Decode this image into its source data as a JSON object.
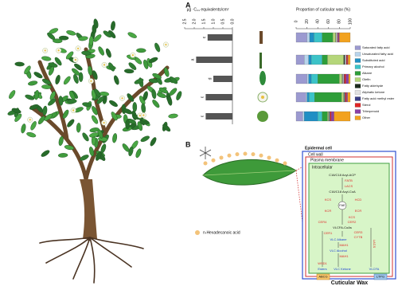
{
  "panel_a": {
    "label": "A",
    "bar_chart": {
      "type": "bar",
      "orientation": "horizontal",
      "x_label": "µg ·C₂₄ equivalents/cm²",
      "xlim": [
        0,
        2.5
      ],
      "xticks": [
        {
          "value": 0,
          "label": "0.0"
        },
        0.5,
        {
          "value": 1,
          "label": "1.0"
        },
        1.5,
        {
          "value": 2,
          "label": "2.0"
        },
        2.5
      ],
      "values": [
        1.3,
        1.9,
        1.0,
        1.4,
        1.4
      ],
      "letters": [
        "c",
        "a",
        "d",
        "c",
        "c"
      ],
      "color": "#555555"
    },
    "stacked_chart": {
      "type": "stacked-bar",
      "x_label": "Proportion of cuticular wax (%)",
      "xlim": [
        0,
        100
      ],
      "xticks": [
        0,
        20,
        40,
        60,
        80,
        100
      ],
      "series": [
        {
          "name": "Saturated fatty acid",
          "color": "#9c9ad0",
          "values": [
            20,
            15,
            20,
            18,
            12
          ]
        },
        {
          "name": "Unsaturated fatty acid",
          "color": "#b8d4ec",
          "values": [
            5,
            8,
            3,
            2,
            3
          ]
        },
        {
          "name": "Substituted acid",
          "color": "#1f8fc4",
          "values": [
            8,
            5,
            5,
            4,
            25
          ]
        },
        {
          "name": "Primary alcohol",
          "color": "#3cc3c8",
          "values": [
            15,
            20,
            12,
            10,
            8
          ]
        },
        {
          "name": "Alkane",
          "color": "#2e9e3a",
          "values": [
            20,
            10,
            40,
            50,
            10
          ]
        },
        {
          "name": "Olefin",
          "color": "#b5d67a",
          "values": [
            5,
            30,
            5,
            4,
            2
          ]
        },
        {
          "name": "Fatty aldehyde",
          "color": "#1d2b1d",
          "values": [
            1,
            2,
            1,
            1,
            1
          ]
        },
        {
          "name": "Aliphatic ketone",
          "color": "#e2e2e2",
          "values": [
            2,
            2,
            2,
            1,
            1
          ]
        },
        {
          "name": "Fatty acid methyl ester",
          "color": "#3b3f86",
          "values": [
            1,
            1,
            1,
            1,
            1
          ]
        },
        {
          "name": "Sterol",
          "color": "#e02424",
          "values": [
            1,
            2,
            3,
            2,
            2
          ]
        },
        {
          "name": "Triterpenoid",
          "color": "#8a3fa6",
          "values": [
            2,
            1,
            5,
            2,
            5
          ]
        },
        {
          "name": "Other",
          "color": "#f2a21e",
          "values": [
            20,
            4,
            3,
            5,
            30
          ]
        }
      ]
    }
  },
  "panel_b": {
    "label": "B",
    "compound": "n-Hexadecanoic acid",
    "compartments": [
      "Epidermal cell",
      "Cell wall",
      "Plasma membrane",
      "Intracellular"
    ],
    "nodes": [
      {
        "label": "C16/C18 Acyl-ACP",
        "kind": "metabolite"
      },
      {
        "label": "FATB",
        "kind": "enzyme"
      },
      {
        "label": "LACS",
        "kind": "enzyme"
      },
      {
        "label": "C16/C18 Acyl-CoA",
        "kind": "metabolite"
      },
      {
        "label": "KCS",
        "kind": "enzyme"
      },
      {
        "label": "HCD",
        "kind": "enzyme"
      },
      {
        "label": "FAE",
        "kind": "metabolite"
      },
      {
        "label": "KCR",
        "kind": "enzyme"
      },
      {
        "label": "ECR",
        "kind": "enzyme"
      },
      {
        "label": "KCS",
        "kind": "enzyme"
      },
      {
        "label": "CER2",
        "kind": "enzyme"
      },
      {
        "label": "CER4",
        "kind": "enzyme"
      },
      {
        "label": "VLCFA-CoAs",
        "kind": "metabolite"
      },
      {
        "label": "CER1",
        "kind": "enzyme"
      },
      {
        "label": "CER3",
        "kind": "enzyme"
      },
      {
        "label": "CYTB",
        "kind": "enzyme"
      },
      {
        "label": "VLC Alkane",
        "kind": "product"
      },
      {
        "label": "MAH1",
        "kind": "enzyme"
      },
      {
        "label": "VLC Alcohol",
        "kind": "product"
      },
      {
        "label": "MAH1",
        "kind": "enzyme"
      },
      {
        "label": "WSD1",
        "kind": "enzyme"
      },
      {
        "label": "Esters",
        "kind": "product"
      },
      {
        "label": "VLC Ketone",
        "kind": "product"
      },
      {
        "label": "VLCFA",
        "kind": "product"
      },
      {
        "label": "LACS",
        "kind": "enzyme"
      }
    ],
    "transporters": [
      "ABCG",
      "LTPG"
    ],
    "wax_label": "Cuticular Wax"
  }
}
